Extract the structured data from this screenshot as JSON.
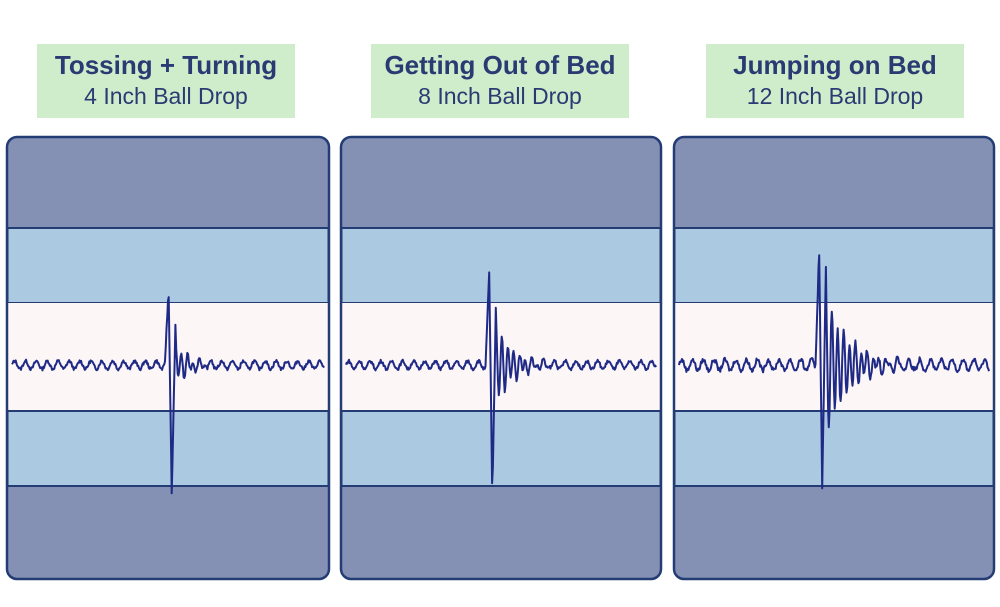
{
  "colors": {
    "outer_band": "#8491b4",
    "middle_band": "#abc9e0",
    "center_band": "#fcf6f6",
    "border": "#243c74",
    "trace": "#1f2a86",
    "label_bg": "#cfeccb",
    "label_text": "#2a3a73"
  },
  "chart_data": [
    {
      "type": "line",
      "title": "Tossing + Turning",
      "subtitle": "4 Inch Ball Drop",
      "xlabel": "",
      "ylabel": "",
      "ylim": [
        -1,
        1
      ],
      "series": [
        {
          "impact_at": 0.51,
          "peak_up": 0.55,
          "peak_down": 0.95,
          "secondary_up": 0.33,
          "ring_decay": 3.2,
          "noise": 0.03
        }
      ]
    },
    {
      "type": "line",
      "title": "Getting Out of Bed",
      "subtitle": "8 Inch Ball Drop",
      "xlabel": "",
      "ylabel": "",
      "ylim": [
        -1,
        1
      ],
      "series": [
        {
          "impact_at": 0.47,
          "peak_up": 0.68,
          "peak_down": 1.0,
          "secondary_up": 0.55,
          "ring_decay": 2.6,
          "noise": 0.03
        }
      ]
    },
    {
      "type": "line",
      "title": "Jumping on Bed",
      "subtitle": "12 Inch Ball Drop",
      "xlabel": "",
      "ylabel": "",
      "ylim": [
        -1,
        1
      ],
      "series": [
        {
          "impact_at": 0.46,
          "peak_up": 0.92,
          "peak_down": 1.0,
          "secondary_up": 0.8,
          "ring_decay": 1.9,
          "noise": 0.04
        }
      ]
    }
  ]
}
